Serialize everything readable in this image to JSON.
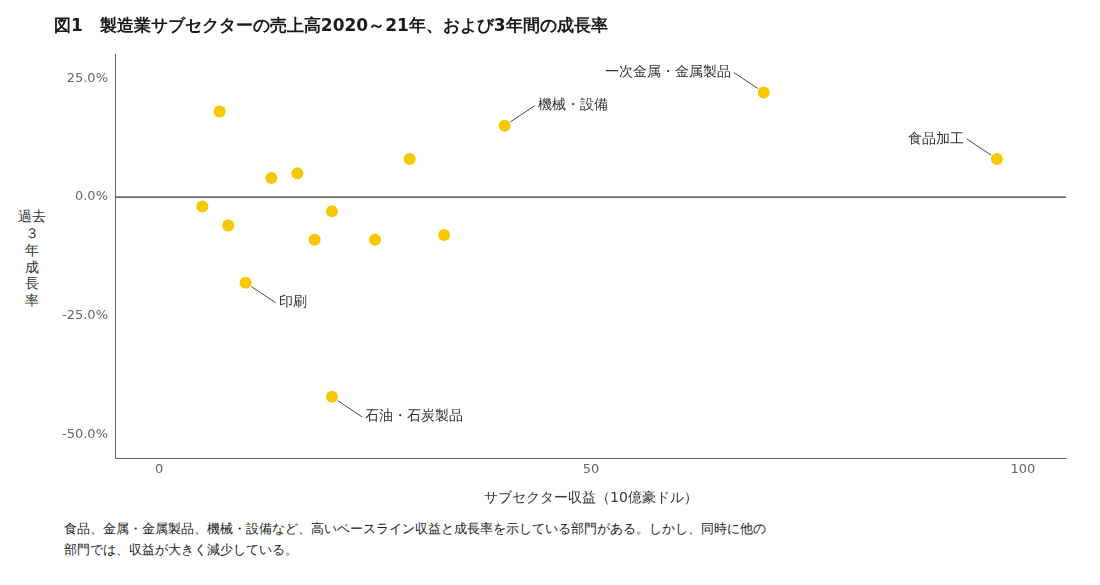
{
  "chart_data": {
    "type": "scatter",
    "title": "図1　製造業サブセクターの売上高2020～21年、および3年間の成長率",
    "xlabel": "サブセクター収益（10億豪ドル）",
    "ylabel": "過去\n３\n年\n成\n長\n率",
    "x": [
      7,
      5,
      8,
      13,
      16,
      20,
      25,
      33,
      29,
      10,
      18,
      40,
      70,
      97,
      20
    ],
    "values": [
      0.18,
      -0.02,
      -0.06,
      0.04,
      0.05,
      -0.03,
      -0.09,
      -0.08,
      0.08,
      -0.18,
      -0.09,
      0.15,
      0.22,
      0.08,
      -0.42
    ],
    "color": "#F5C800",
    "xlim": [
      -5,
      105
    ],
    "xticks": [
      0,
      50,
      100
    ],
    "ylim": [
      -0.55,
      0.3
    ],
    "yticks": [
      {
        "value": -0.5,
        "label": "-50.0%"
      },
      {
        "value": -0.25,
        "label": "-25.0%"
      },
      {
        "value": 0.0,
        "label": "0.0%"
      },
      {
        "value": 0.25,
        "label": "25.0%"
      }
    ],
    "grid": false,
    "annotations": [
      {
        "label": "印刷",
        "x": 10,
        "y": -0.18
      },
      {
        "label": "機械・設備",
        "x": 40,
        "y": 0.15
      },
      {
        "label": "一次金属・金属製品",
        "x": 70,
        "y": 0.22
      },
      {
        "label": "食品加工",
        "x": 97,
        "y": 0.08
      },
      {
        "label": "石油・石炭製品",
        "x": 20,
        "y": -0.42
      }
    ],
    "caption": "食品、金属・金属製品、機械・設備など、高いベースライン収益と成長率を示している部門がある。しかし、同時に他の\n部門では、収益が大きく減少している。"
  }
}
